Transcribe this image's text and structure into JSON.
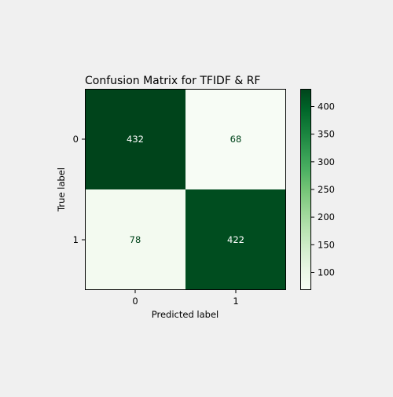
{
  "chart_data": {
    "type": "heatmap",
    "title": "Confusion Matrix for TFIDF & RF",
    "xlabel": "Predicted label",
    "ylabel": "True label",
    "x_categories": [
      "0",
      "1"
    ],
    "y_categories": [
      "0",
      "1"
    ],
    "values": [
      [
        432,
        68
      ],
      [
        78,
        422
      ]
    ],
    "colormap": "Greens",
    "colorbar": {
      "range": [
        68,
        432
      ],
      "ticks": [
        "100",
        "150",
        "200",
        "250",
        "300",
        "350",
        "400"
      ],
      "tick_values": [
        100,
        150,
        200,
        250,
        300,
        350,
        400
      ]
    },
    "colors": {
      "low": "#f7fcf5",
      "high": "#00441b",
      "text_on_dark": "#ffffff",
      "text_on_light": "#00441b"
    }
  }
}
